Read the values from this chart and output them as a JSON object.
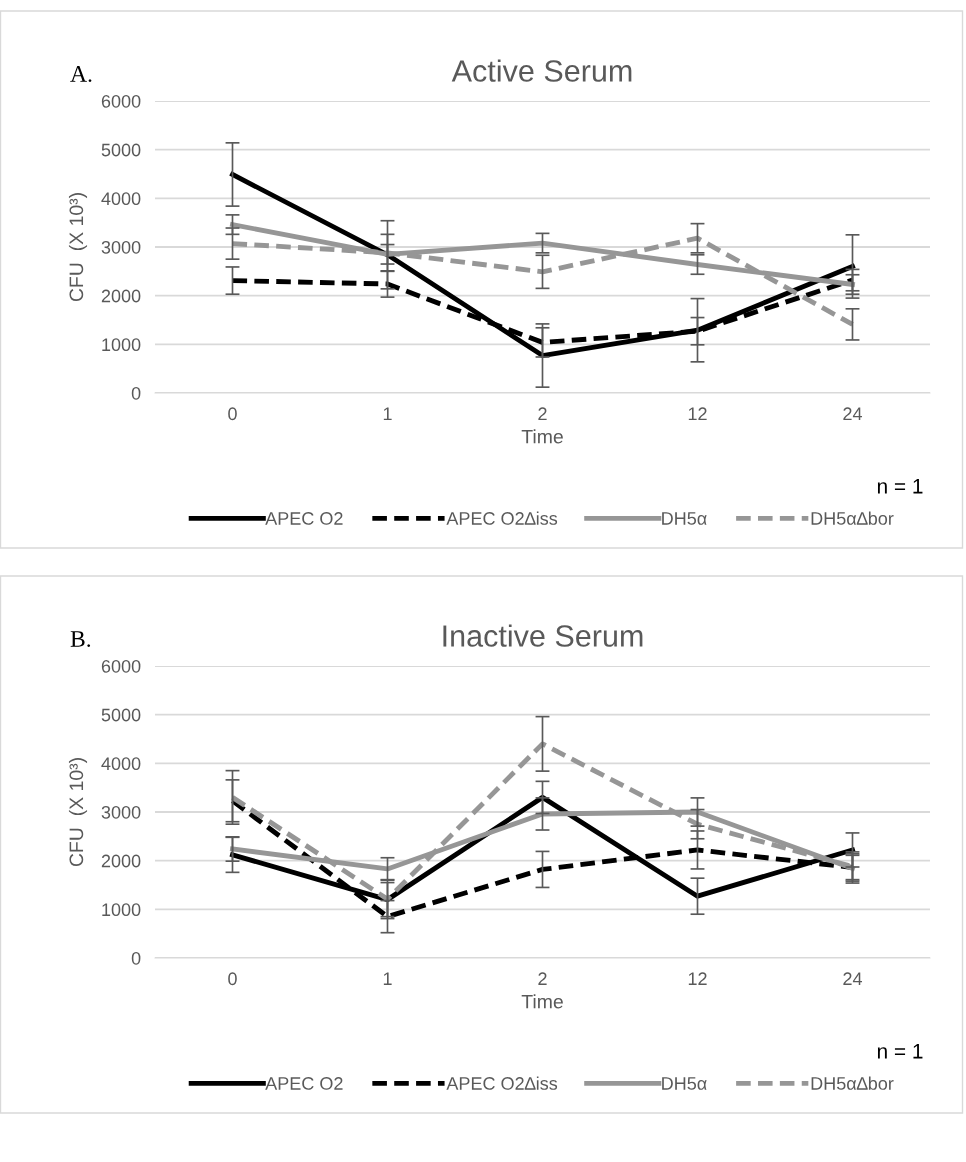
{
  "chart_data": [
    {
      "type": "line",
      "title": "Active Serum",
      "xlabel": "Time",
      "ylabel": "CFU  (X 10³)",
      "categories": [
        "0",
        "1",
        "2",
        "12",
        "24"
      ],
      "ylim": [
        0,
        6000
      ],
      "yticks": [
        0,
        1000,
        2000,
        3000,
        4000,
        5000,
        6000
      ],
      "grid": "y",
      "legend": "bottom",
      "marker": "none",
      "annotations": [
        "A.",
        "n = 1"
      ],
      "series": [
        {
          "name": "APEC O2",
          "color": "#000000",
          "line_style": "solid",
          "values": [
            4490,
            2840,
            770,
            1290,
            2600
          ],
          "errors": [
            650,
            700,
            650,
            650,
            650
          ]
        },
        {
          "name": "APEC O2∆iss",
          "color": "#000000",
          "line_style": "dashed",
          "values": [
            2310,
            2240,
            1040,
            1270,
            2320
          ],
          "errors": [
            280,
            270,
            300,
            280,
            220
          ]
        },
        {
          "name": "DH5α",
          "color": "#969696",
          "line_style": "solid",
          "values": [
            3460,
            2850,
            3080,
            2640,
            2230
          ],
          "errors": [
            200,
            200,
            200,
            200,
            200
          ]
        },
        {
          "name": "DH5α∆bor",
          "color": "#969696",
          "line_style": "dashed",
          "values": [
            3070,
            2880,
            2490,
            3180,
            1410
          ],
          "errors": [
            320,
            380,
            340,
            300,
            320
          ]
        }
      ]
    },
    {
      "type": "line",
      "title": "Inactive Serum",
      "xlabel": "Time",
      "ylabel": "CFU  (X 10³)",
      "categories": [
        "0",
        "1",
        "2",
        "12",
        "24"
      ],
      "ylim": [
        0,
        6000
      ],
      "yticks": [
        0,
        1000,
        2000,
        3000,
        4000,
        5000,
        6000
      ],
      "grid": "y",
      "legend": "bottom",
      "marker": "none",
      "annotations": [
        "B.",
        "n = 1"
      ],
      "series": [
        {
          "name": "APEC O2",
          "color": "#000000",
          "line_style": "solid",
          "values": [
            2120,
            1200,
            3300,
            1270,
            2220
          ],
          "errors": [
            360,
            350,
            330,
            370,
            350
          ]
        },
        {
          "name": "APEC O2∆iss",
          "color": "#000000",
          "line_style": "dashed",
          "values": [
            3230,
            850,
            1820,
            2220,
            1860
          ],
          "errors": [
            430,
            330,
            370,
            390,
            250
          ]
        },
        {
          "name": "DH5α",
          "color": "#969696",
          "line_style": "solid",
          "values": [
            2240,
            1830,
            2960,
            3000,
            1840
          ],
          "errors": [
            250,
            230,
            330,
            290,
            300
          ]
        },
        {
          "name": "DH5α∆bor",
          "color": "#969696",
          "line_style": "dashed",
          "values": [
            3300,
            1210,
            4400,
            2750,
            1880
          ],
          "errors": [
            550,
            400,
            560,
            300,
            300
          ]
        }
      ]
    }
  ]
}
